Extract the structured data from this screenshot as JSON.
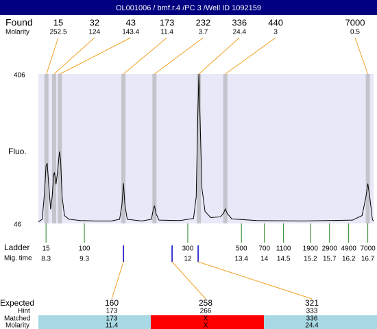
{
  "chart_data": {
    "type": "line",
    "title": "OL001006 / bmf.r.4 /PC 3 /Well ID 1092159",
    "ylabel": "Fluo.",
    "ylim": [
      46,
      406
    ],
    "yticks": [
      406,
      46
    ],
    "xlim": [
      8.1,
      16.85
    ],
    "color": "#000000",
    "x": [
      8.1,
      8.2,
      8.26,
      8.3,
      8.33,
      8.37,
      8.42,
      8.46,
      8.5,
      8.52,
      8.56,
      8.6,
      8.65,
      8.68,
      8.72,
      8.78,
      8.9,
      9.2,
      9.6,
      10.0,
      10.22,
      10.28,
      10.32,
      10.36,
      10.42,
      10.8,
      11.05,
      11.1,
      11.13,
      11.17,
      11.25,
      11.8,
      12.15,
      12.22,
      12.26,
      12.29,
      12.32,
      12.37,
      12.45,
      12.6,
      12.85,
      12.93,
      12.98,
      13.03,
      13.15,
      13.8,
      15.0,
      16.3,
      16.55,
      16.65,
      16.7,
      16.75,
      16.82,
      16.85
    ],
    "values": [
      50,
      56,
      120,
      185,
      191,
      140,
      80,
      110,
      165,
      168,
      140,
      170,
      219,
      200,
      110,
      65,
      56,
      53,
      52,
      52,
      56,
      90,
      143,
      90,
      56,
      52,
      56,
      80,
      89,
      70,
      54,
      53,
      58,
      110,
      300,
      406,
      300,
      130,
      75,
      60,
      62,
      70,
      81,
      70,
      57,
      53,
      52,
      54,
      65,
      110,
      142,
      110,
      55,
      52
    ],
    "found": {
      "label": "Found",
      "sublabel": "Molarity",
      "sizes": [
        15,
        32,
        43,
        173,
        232,
        336,
        440,
        7000
      ],
      "molarity": [
        252.5,
        124,
        143.4,
        11.4,
        3.7,
        24.4,
        3,
        0.5
      ],
      "times": [
        8.31,
        8.51,
        8.66,
        10.32,
        11.13,
        12.29,
        12.98,
        16.7
      ],
      "band_color": "#c4c4cc",
      "line_color": "#f0a020"
    },
    "ladder": {
      "label": "Ladder",
      "sublabel": "Mig. time",
      "sizes": [
        15,
        100,
        300,
        500,
        700,
        1100,
        1900,
        2900,
        4900,
        7000
      ],
      "times": [
        8.3,
        9.3,
        12,
        13.4,
        14,
        14.5,
        15.2,
        15.7,
        16.2,
        16.7
      ],
      "color": "#208020"
    },
    "expected": {
      "label": "Expected",
      "hint_label": "Hint",
      "matched_label": "Matched",
      "molarity_label": "Molarity",
      "sizes": [
        160,
        258,
        321
      ],
      "times": [
        10.32,
        11.59,
        12.27
      ],
      "hint": [
        173,
        266,
        333
      ],
      "matched": [
        173,
        "X",
        336
      ],
      "molarity": [
        11.4,
        "X",
        24.4
      ],
      "colors": [
        "#a8d8e4",
        "#ff0000",
        "#a8d8e4"
      ],
      "mark_color": "#0000c0"
    }
  }
}
